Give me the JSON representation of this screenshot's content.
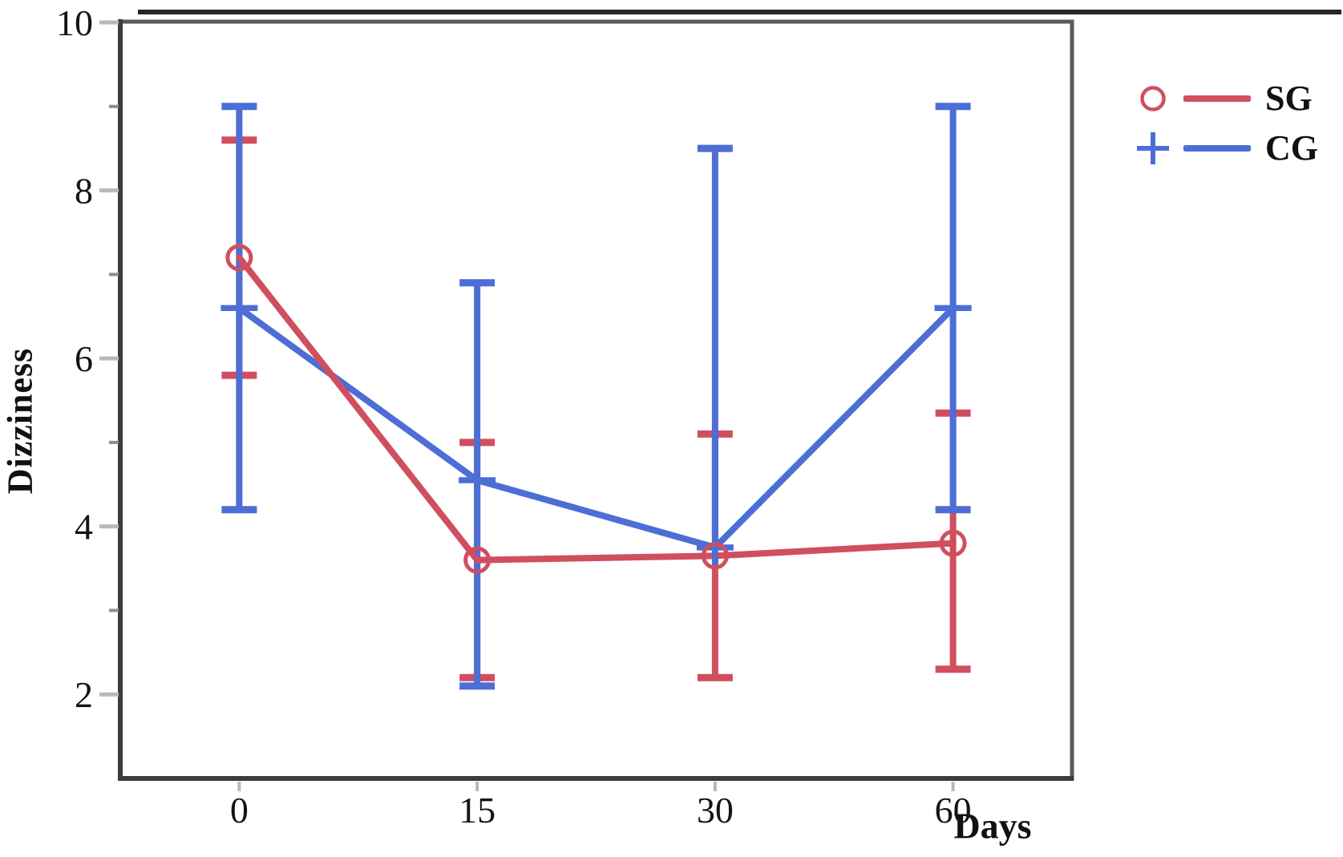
{
  "figure": {
    "background": "#ffffff",
    "border_color": "#262626",
    "frame_color": "#5a5a5a",
    "axis_color": "#3c3c3c",
    "tick_major_color": "#b9b9b9",
    "tick_minor_color": "#8d8d8d",
    "text_color": "#141414"
  },
  "chart_data": {
    "type": "line",
    "title": "",
    "xlabel": "Days",
    "ylabel": "Dizziness",
    "categories": [
      "0",
      "15",
      "30",
      "60"
    ],
    "ylim": [
      1,
      10
    ],
    "yticks_major": [
      2,
      4,
      6,
      8,
      10
    ],
    "yticks_minor": [
      3,
      5,
      7,
      9
    ],
    "grid": false,
    "legend_position": "top-right-outside",
    "series": [
      {
        "name": "SG",
        "color": "#d04f5e",
        "marker": "circle",
        "values": [
          7.2,
          3.6,
          3.65,
          3.8
        ],
        "err_hi": [
          8.6,
          5.0,
          5.1,
          5.35
        ],
        "err_lo": [
          5.8,
          2.2,
          2.2,
          2.3
        ]
      },
      {
        "name": "CG",
        "color": "#4c6ed6",
        "marker": "plus",
        "values": [
          6.6,
          4.55,
          3.75,
          6.6
        ],
        "err_hi": [
          9.0,
          6.9,
          8.5,
          9.0
        ],
        "err_lo": [
          4.2,
          2.1,
          null,
          4.2
        ]
      }
    ],
    "legend": [
      {
        "label": "SG",
        "color": "#d04f5e",
        "marker": "circle"
      },
      {
        "label": "CG",
        "color": "#4c6ed6",
        "marker": "plus"
      }
    ]
  }
}
